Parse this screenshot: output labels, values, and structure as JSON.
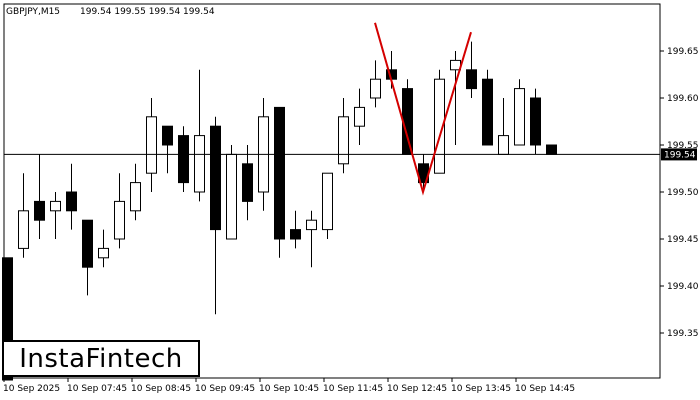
{
  "header": {
    "symbol": "GBPJPY,M15",
    "ohlc": "199.54 199.55 199.54 199.54"
  },
  "logo": {
    "text": "InstaFintech"
  },
  "colors": {
    "background": "#ffffff",
    "candle": "#000000",
    "pattern": "#d40000",
    "price_label_bg": "#000000",
    "price_label_text": "#ffffff"
  },
  "chart_data": {
    "type": "candlestick",
    "symbol": "GBPJPY",
    "timeframe": "M15",
    "y_ticks": [
      "199.65",
      "199.60",
      "199.55",
      "199.50",
      "199.45",
      "199.40",
      "199.35"
    ],
    "y_tick_values": [
      199.65,
      199.6,
      199.55,
      199.5,
      199.45,
      199.4,
      199.35
    ],
    "x_ticks": [
      "10 Sep 2025",
      "10 Sep 07:45",
      "10 Sep 08:45",
      "10 Sep 09:45",
      "10 Sep 10:45",
      "10 Sep 11:45",
      "10 Sep 12:45",
      "10 Sep 13:45",
      "10 Sep 14:45"
    ],
    "x_tick_index": [
      0,
      4,
      8,
      12,
      16,
      20,
      24,
      28,
      32
    ],
    "current_price": 199.54,
    "current_price_label": "199.54",
    "candles": [
      {
        "o": 199.43,
        "h": 199.43,
        "l": 199.3,
        "c": 199.3
      },
      {
        "o": 199.44,
        "h": 199.52,
        "l": 199.43,
        "c": 199.48
      },
      {
        "o": 199.49,
        "h": 199.54,
        "l": 199.45,
        "c": 199.47
      },
      {
        "o": 199.48,
        "h": 199.5,
        "l": 199.45,
        "c": 199.49
      },
      {
        "o": 199.5,
        "h": 199.53,
        "l": 199.46,
        "c": 199.48
      },
      {
        "o": 199.47,
        "h": 199.47,
        "l": 199.39,
        "c": 199.42
      },
      {
        "o": 199.43,
        "h": 199.46,
        "l": 199.42,
        "c": 199.44
      },
      {
        "o": 199.45,
        "h": 199.52,
        "l": 199.44,
        "c": 199.49
      },
      {
        "o": 199.48,
        "h": 199.53,
        "l": 199.47,
        "c": 199.51
      },
      {
        "o": 199.52,
        "h": 199.6,
        "l": 199.5,
        "c": 199.58
      },
      {
        "o": 199.57,
        "h": 199.57,
        "l": 199.52,
        "c": 199.55
      },
      {
        "o": 199.56,
        "h": 199.57,
        "l": 199.5,
        "c": 199.51
      },
      {
        "o": 199.5,
        "h": 199.63,
        "l": 199.49,
        "c": 199.56
      },
      {
        "o": 199.57,
        "h": 199.58,
        "l": 199.37,
        "c": 199.46
      },
      {
        "o": 199.45,
        "h": 199.55,
        "l": 199.45,
        "c": 199.54
      },
      {
        "o": 199.53,
        "h": 199.55,
        "l": 199.47,
        "c": 199.49
      },
      {
        "o": 199.5,
        "h": 199.6,
        "l": 199.48,
        "c": 199.58
      },
      {
        "o": 199.59,
        "h": 199.59,
        "l": 199.43,
        "c": 199.45
      },
      {
        "o": 199.46,
        "h": 199.48,
        "l": 199.44,
        "c": 199.45
      },
      {
        "o": 199.46,
        "h": 199.48,
        "l": 199.42,
        "c": 199.47
      },
      {
        "o": 199.46,
        "h": 199.52,
        "l": 199.45,
        "c": 199.52
      },
      {
        "o": 199.53,
        "h": 199.6,
        "l": 199.52,
        "c": 199.58
      },
      {
        "o": 199.57,
        "h": 199.61,
        "l": 199.55,
        "c": 199.59
      },
      {
        "o": 199.6,
        "h": 199.64,
        "l": 199.59,
        "c": 199.62
      },
      {
        "o": 199.63,
        "h": 199.65,
        "l": 199.61,
        "c": 199.62
      },
      {
        "o": 199.61,
        "h": 199.62,
        "l": 199.54,
        "c": 199.54
      },
      {
        "o": 199.53,
        "h": 199.54,
        "l": 199.5,
        "c": 199.51
      },
      {
        "o": 199.52,
        "h": 199.63,
        "l": 199.52,
        "c": 199.62
      },
      {
        "o": 199.63,
        "h": 199.65,
        "l": 199.55,
        "c": 199.64
      },
      {
        "o": 199.63,
        "h": 199.66,
        "l": 199.6,
        "c": 199.61
      },
      {
        "o": 199.62,
        "h": 199.63,
        "l": 199.55,
        "c": 199.55
      },
      {
        "o": 199.54,
        "h": 199.6,
        "l": 199.54,
        "c": 199.56
      },
      {
        "o": 199.55,
        "h": 199.62,
        "l": 199.55,
        "c": 199.61
      },
      {
        "o": 199.6,
        "h": 199.61,
        "l": 199.54,
        "c": 199.55
      },
      {
        "o": 199.55,
        "h": 199.55,
        "l": 199.54,
        "c": 199.54
      }
    ],
    "pattern": {
      "name": "Double Top",
      "points": [
        {
          "i": 23.0,
          "price": 199.68
        },
        {
          "i": 26.0,
          "price": 199.5
        },
        {
          "i": 29.0,
          "price": 199.67
        }
      ]
    }
  }
}
